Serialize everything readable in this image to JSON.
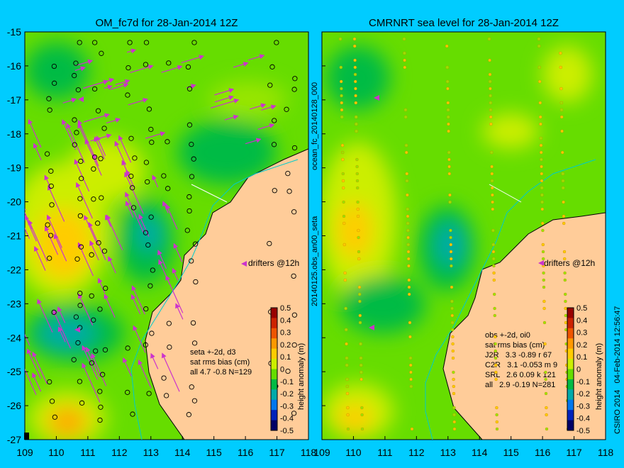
{
  "colors": {
    "background": "#00ccff",
    "land": "#ffcc99",
    "coast_shade": "#999999",
    "drift_arrow": "#cc33cc",
    "contour_line": "#00cccc",
    "obs_circle": "#000000"
  },
  "axes": {
    "lat_ticks": [
      "-15",
      "-16",
      "-17",
      "-18",
      "-19",
      "-20",
      "-21",
      "-22",
      "-23",
      "-24",
      "-25",
      "-26",
      "-27"
    ],
    "lon_ticks": [
      "109",
      "110",
      "111",
      "112",
      "113",
      "114",
      "115",
      "116",
      "117",
      "118"
    ],
    "lon_range": [
      109,
      118
    ],
    "lat_range": [
      -15,
      -27
    ]
  },
  "left_panel": {
    "title": "OM_fc7d for 28-Jan-2014 12Z",
    "drifters_label": "drifters @12h",
    "stats": [
      "seta +-2d, d3",
      "sat rms bias (cm)",
      "all 4.7 -0.8 N=129"
    ],
    "colorbar_label": "height anomaly (m)"
  },
  "right_panel": {
    "title": "CMRNRT sea level  for 28-Jan-2014 12Z",
    "drifters_label": "drifters @12h",
    "stats": [
      "obs +-2d, oi0",
      "sat rms bias (cm)",
      "J2R   3.3 -0.89 r 67",
      "C2R   3.1 -0.053 m 9",
      "SRL   2.6 0.09 k 121",
      "all   2.9 -0.19 N=281"
    ],
    "colorbar_label": "height anomaly (m)"
  },
  "colorbar": {
    "ticks": [
      "0.5",
      "0.4",
      "0.3",
      "0.2",
      "0.1",
      "0",
      "-0.1",
      "-0.2",
      "-0.3",
      "-0.4",
      "-0.5"
    ],
    "colors": [
      "#990000",
      "#cc2200",
      "#ee5500",
      "#ff9900",
      "#ffcc00",
      "#ccee00",
      "#66dd00",
      "#00bb44",
      "#00aaaa",
      "#0077ee",
      "#0022bb",
      "#000066"
    ]
  },
  "side_labels": {
    "middle_top": "ocean_fc_20140128_000",
    "middle_bottom": "20140125.obs_an00_seta",
    "right_edge": "CSIRO 2014   04-Feb-2014 12:56:47"
  }
}
